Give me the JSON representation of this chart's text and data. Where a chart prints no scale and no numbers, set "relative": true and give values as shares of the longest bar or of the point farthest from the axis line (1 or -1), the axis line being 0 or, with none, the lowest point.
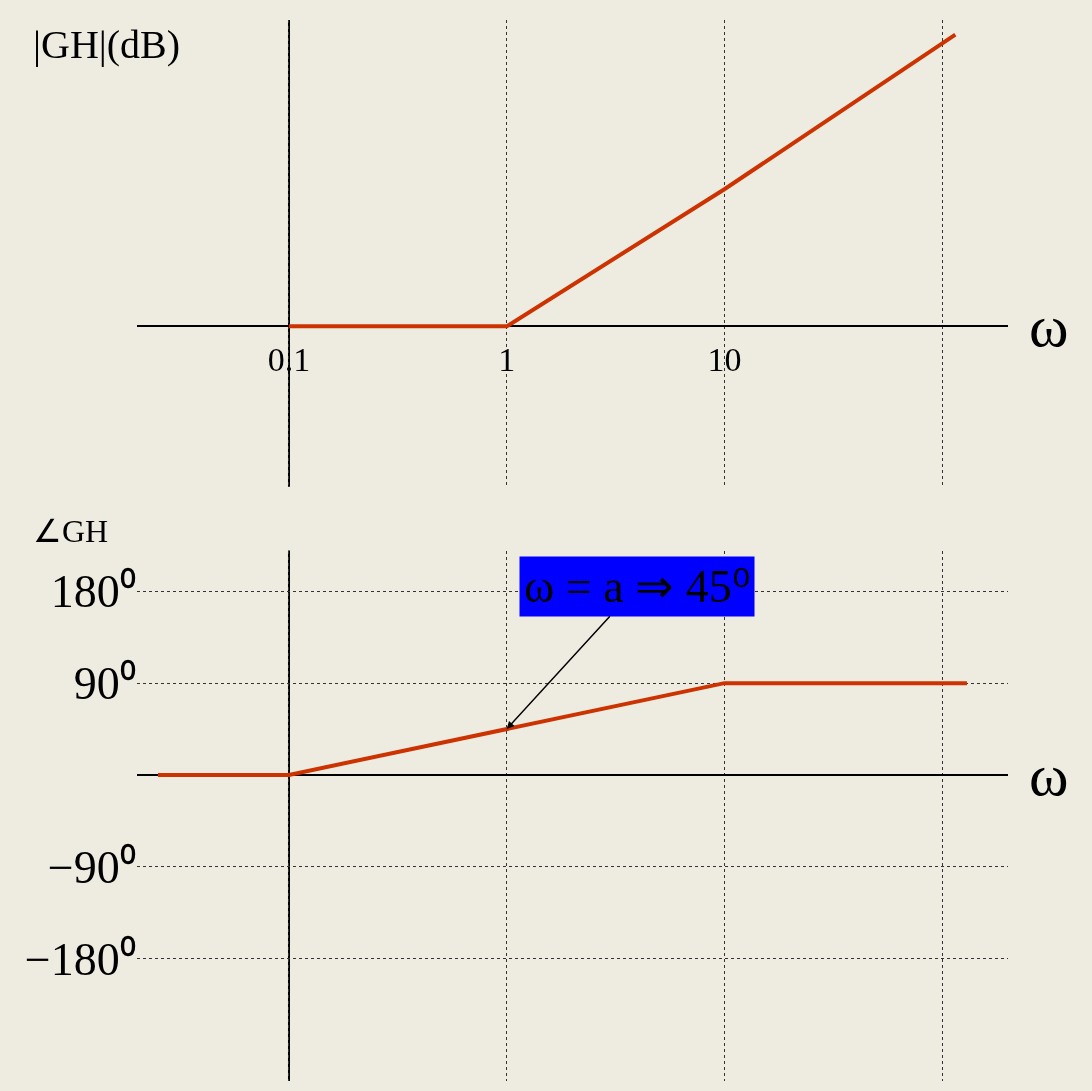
{
  "chart_data": [
    {
      "type": "line",
      "relative": true,
      "xlabel": "ω",
      "ylabel": "|GH|(dB)",
      "log": "x",
      "xlim": [
        0.02,
        200
      ],
      "xticks": [
        0.1,
        1,
        10,
        {
          "value": 100,
          "label": null
        }
      ],
      "grid": "x",
      "marker": "none",
      "line_style": "solid",
      "ref_lines": [
        {
          "axis": "x",
          "value": 0.1,
          "color": "#000000"
        }
      ],
      "series": [
        {
          "color": "#cc3300",
          "x": [
            0.1,
            1,
            10,
            115
          ],
          "values": [
            0,
            0,
            0.47,
            1
          ]
        }
      ]
    },
    {
      "type": "line",
      "xlabel": "ω",
      "ylabel": "∠GH",
      "log": "x",
      "xlim": [
        0.02,
        200
      ],
      "xticks": [
        0.1,
        1,
        10,
        {
          "value": 100,
          "label": null
        }
      ],
      "ylim": [
        -300,
        220
      ],
      "yticks": [
        {
          "value": 180,
          "label": "180⁰"
        },
        {
          "value": 90,
          "label": "90⁰"
        },
        {
          "value": -90,
          "label": "−90⁰"
        },
        {
          "value": -180,
          "label": "−180⁰"
        }
      ],
      "tick_labels": "y",
      "grid": true,
      "marker": "none",
      "line_style": "solid",
      "ref_lines": [
        {
          "axis": "x",
          "value": 0.1,
          "color": "#000000"
        }
      ],
      "series": [
        {
          "color": "#cc3300",
          "x": [
            0.025,
            0.1,
            10,
            130
          ],
          "values": [
            0,
            0,
            90,
            90
          ]
        }
      ],
      "annotations": [
        {
          "text": "ω = a ⇒ 45⁰",
          "x": 1,
          "y": 45
        }
      ]
    }
  ]
}
